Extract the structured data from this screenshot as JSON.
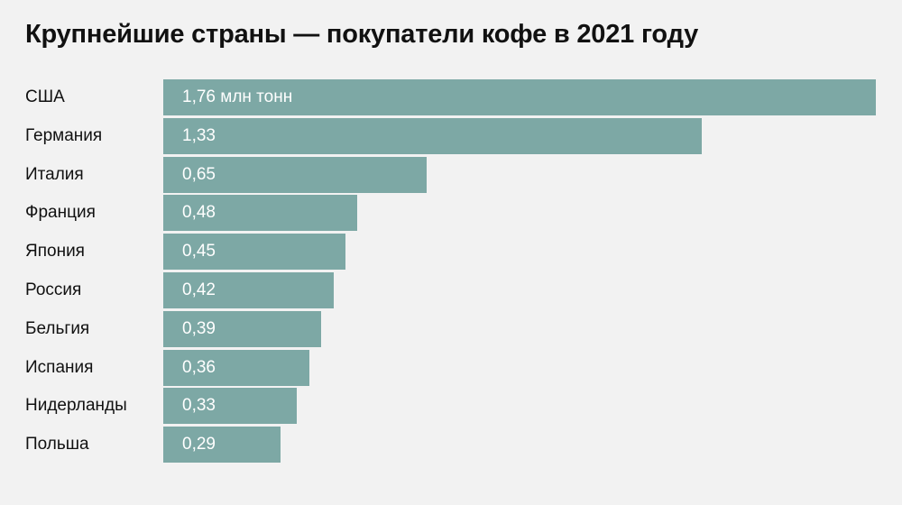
{
  "title": "Крупнейшие страны — покупатели кофе в 2021 году",
  "chart_data": {
    "type": "bar",
    "orientation": "horizontal",
    "title": "Крупнейшие страны — покупатели кофе в 2021 году",
    "categories": [
      "США",
      "Германия",
      "Италия",
      "Франция",
      "Япония",
      "Россия",
      "Бельгия",
      "Испания",
      "Нидерланды",
      "Польша"
    ],
    "values": [
      1.76,
      1.33,
      0.65,
      0.48,
      0.45,
      0.42,
      0.39,
      0.36,
      0.33,
      0.29
    ],
    "value_labels": [
      "1,76 млн тонн",
      "1,33",
      "0,65",
      "0,48",
      "0,45",
      "0,42",
      "0,39",
      "0,36",
      "0,33",
      "0,29"
    ],
    "xlim": [
      0,
      1.76
    ],
    "grid": false,
    "bar_color": "#7da8a5"
  }
}
